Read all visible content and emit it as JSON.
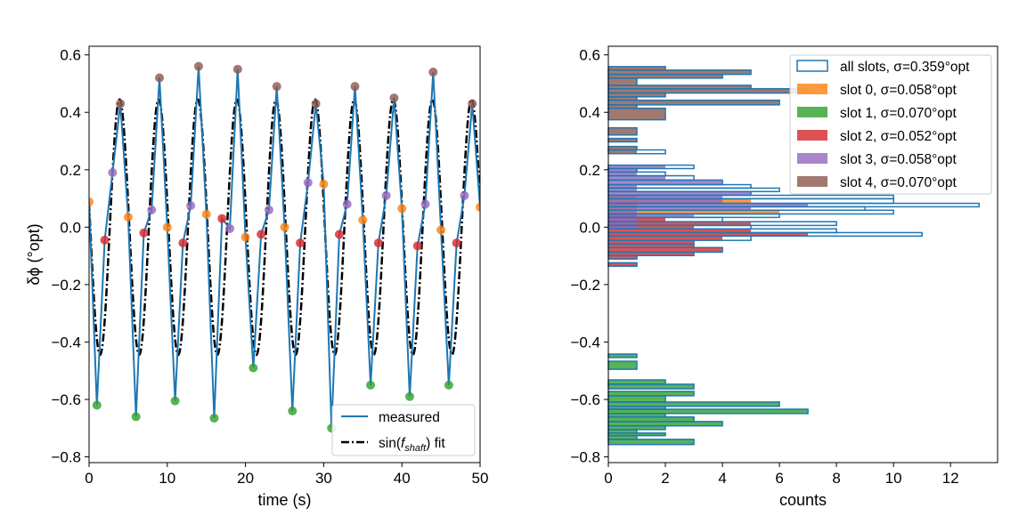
{
  "chart_data": [
    {
      "type": "line",
      "xlabel": "time (s)",
      "ylabel": "δϕ (°opt)",
      "xlim": [
        0,
        50
      ],
      "ylim": [
        -0.82,
        0.63
      ],
      "xticks": [
        "0",
        "10",
        "20",
        "30",
        "40",
        "50"
      ],
      "yticks": [
        "-0.8",
        "-0.6",
        "-0.4",
        "-0.2",
        "0.0",
        "0.2",
        "0.4",
        "0.6"
      ],
      "grid": false,
      "legend_placement": "lower-right",
      "legend": {
        "measured": "measured",
        "fit_prefix": "sin(",
        "fit_var": "f",
        "fit_sub": "shaft",
        "fit_suffix": ") fit"
      },
      "measured": {
        "color": "#1f77b4",
        "x": [
          0,
          1,
          2,
          3,
          4,
          5,
          6,
          7,
          8,
          9,
          10,
          11,
          12,
          13,
          14,
          15,
          16,
          17,
          18,
          19,
          20,
          21,
          22,
          23,
          24,
          25,
          26,
          27,
          28,
          29,
          30,
          31,
          32,
          33,
          34,
          35,
          36,
          37,
          38,
          39,
          40,
          41,
          42,
          43,
          44,
          45,
          46,
          47,
          48,
          49,
          50
        ],
        "y": [
          0.088,
          -0.62,
          -0.045,
          0.19,
          0.43,
          0.035,
          -0.66,
          -0.02,
          0.06,
          0.52,
          0.0,
          -0.605,
          -0.055,
          0.075,
          0.56,
          0.045,
          -0.665,
          0.03,
          -0.005,
          0.55,
          -0.035,
          -0.49,
          -0.025,
          0.06,
          0.49,
          0.0,
          -0.64,
          -0.055,
          0.155,
          0.43,
          0.15,
          -0.7,
          -0.025,
          0.08,
          0.49,
          0.025,
          -0.55,
          -0.055,
          0.11,
          0.45,
          0.065,
          -0.59,
          -0.065,
          0.08,
          0.54,
          -0.01,
          -0.55,
          -0.055,
          0.11,
          0.43,
          0.07
        ]
      },
      "fit": {
        "amplitude": 0.445,
        "period_s": 5,
        "peak_time_s": 3.9,
        "color": "#000000",
        "style": "dash-dot"
      },
      "slot_colors": [
        "#ff7f0e",
        "#2ca02c",
        "#d62728",
        "#9467bd",
        "#8c564b"
      ]
    },
    {
      "type": "bar",
      "orientation": "horizontal histogram",
      "xlabel": "counts",
      "xlim": [
        0,
        13.65
      ],
      "ylim": [
        -0.82,
        0.63
      ],
      "xticks": [
        "0",
        "2",
        "4",
        "6",
        "8",
        "10",
        "12"
      ],
      "yticks": [
        "-0.8",
        "-0.6",
        "-0.4",
        "-0.2",
        "0.0",
        "0.2",
        "0.4",
        "0.6"
      ],
      "grid": false,
      "legend_placement": "top-right",
      "legend": [
        "all slots, σ=0.359°opt",
        "slot 0, σ=0.058°opt",
        "slot 1, σ=0.070°opt",
        "slot 2, σ=0.052°opt",
        "slot 3, σ=0.058°opt",
        "slot 4, σ=0.070°opt"
      ],
      "all_color": "#1f77b4",
      "slot_colors": [
        "#ff7f0e",
        "#2ca02c",
        "#d62728",
        "#9467bd",
        "#8c564b"
      ],
      "rows": [
        {
          "lo": 0.547,
          "hi": 0.559,
          "all": 2,
          "slot": [
            0,
            0,
            0,
            0,
            2
          ]
        },
        {
          "lo": 0.532,
          "hi": 0.547,
          "all": 5,
          "slot": [
            0,
            0,
            0,
            0,
            5
          ]
        },
        {
          "lo": 0.519,
          "hi": 0.532,
          "all": 4,
          "slot": [
            0,
            0,
            0,
            0,
            4
          ]
        },
        {
          "lo": 0.494,
          "hi": 0.519,
          "all": 1,
          "slot": [
            0,
            0,
            0,
            0,
            1
          ]
        },
        {
          "lo": 0.482,
          "hi": 0.494,
          "all": 5,
          "slot": [
            0,
            0,
            0,
            0,
            5
          ]
        },
        {
          "lo": 0.467,
          "hi": 0.482,
          "all": 7,
          "slot": [
            0,
            0,
            0,
            0,
            7
          ]
        },
        {
          "lo": 0.454,
          "hi": 0.467,
          "all": 2,
          "slot": [
            0,
            0,
            0,
            0,
            2
          ]
        },
        {
          "lo": 0.442,
          "hi": 0.454,
          "all": 1,
          "slot": [
            0,
            0,
            0,
            0,
            1
          ]
        },
        {
          "lo": 0.426,
          "hi": 0.442,
          "all": 6,
          "slot": [
            0,
            0,
            0,
            0,
            6
          ]
        },
        {
          "lo": 0.414,
          "hi": 0.426,
          "all": 1,
          "slot": [
            0,
            0,
            0,
            0,
            1
          ]
        },
        {
          "lo": 0.374,
          "hi": 0.414,
          "all": 2,
          "slot": [
            0,
            0,
            0,
            0,
            2
          ]
        },
        {
          "lo": 0.321,
          "hi": 0.346,
          "all": 1,
          "slot": [
            0,
            0,
            0,
            0,
            1
          ]
        },
        {
          "lo": 0.297,
          "hi": 0.309,
          "all": 1,
          "slot": [
            0,
            0,
            0,
            0,
            1
          ]
        },
        {
          "lo": 0.269,
          "hi": 0.281,
          "all": 1,
          "slot": [
            0,
            0,
            0,
            0,
            1
          ]
        },
        {
          "lo": 0.256,
          "hi": 0.269,
          "all": 2,
          "slot": [
            0,
            0,
            0,
            0,
            1
          ]
        },
        {
          "lo": 0.204,
          "hi": 0.216,
          "all": 3,
          "slot": [
            0,
            0,
            0,
            2,
            0
          ]
        },
        {
          "lo": 0.192,
          "hi": 0.204,
          "all": 1,
          "slot": [
            0,
            0,
            0,
            1,
            0
          ]
        },
        {
          "lo": 0.179,
          "hi": 0.192,
          "all": 2,
          "slot": [
            0,
            0,
            0,
            1,
            0
          ]
        },
        {
          "lo": 0.164,
          "hi": 0.179,
          "all": 3,
          "slot": [
            0,
            0,
            0,
            2,
            0
          ]
        },
        {
          "lo": 0.148,
          "hi": 0.164,
          "all": 4,
          "slot": [
            0,
            0,
            0,
            4,
            0
          ]
        },
        {
          "lo": 0.136,
          "hi": 0.148,
          "all": 5,
          "slot": [
            0,
            0,
            0,
            1,
            0
          ]
        },
        {
          "lo": 0.124,
          "hi": 0.136,
          "all": 6,
          "slot": [
            0,
            0,
            0,
            1,
            0
          ]
        },
        {
          "lo": 0.111,
          "hi": 0.124,
          "all": 5,
          "slot": [
            0,
            0,
            0,
            5,
            0
          ]
        },
        {
          "lo": 0.099,
          "hi": 0.111,
          "all": 10,
          "slot": [
            1,
            0,
            0,
            4,
            0
          ]
        },
        {
          "lo": 0.083,
          "hi": 0.099,
          "all": 10,
          "slot": [
            5,
            0,
            0,
            4,
            0
          ]
        },
        {
          "lo": 0.071,
          "hi": 0.083,
          "all": 13,
          "slot": [
            1,
            0,
            0,
            7,
            0
          ]
        },
        {
          "lo": 0.059,
          "hi": 0.071,
          "all": 9,
          "slot": [
            1,
            0,
            0,
            5,
            0
          ]
        },
        {
          "lo": 0.046,
          "hi": 0.059,
          "all": 10,
          "slot": [
            6,
            0,
            0,
            1,
            0
          ]
        },
        {
          "lo": 0.034,
          "hi": 0.046,
          "all": 6,
          "slot": [
            0,
            0,
            1,
            3,
            0
          ]
        },
        {
          "lo": 0.019,
          "hi": 0.034,
          "all": 4,
          "slot": [
            0,
            0,
            2,
            1,
            0
          ]
        },
        {
          "lo": 0.006,
          "hi": 0.019,
          "all": 8,
          "slot": [
            0,
            0,
            5,
            1,
            0
          ]
        },
        {
          "lo": -0.006,
          "hi": 0.006,
          "all": 5,
          "slot": [
            0,
            0,
            3,
            1,
            0
          ]
        },
        {
          "lo": -0.019,
          "hi": -0.006,
          "all": 8,
          "slot": [
            0,
            0,
            5,
            0,
            0
          ]
        },
        {
          "lo": -0.031,
          "hi": -0.019,
          "all": 11,
          "slot": [
            0,
            0,
            7,
            0,
            0
          ]
        },
        {
          "lo": -0.046,
          "hi": -0.031,
          "all": 5,
          "slot": [
            0,
            0,
            4,
            0,
            0
          ]
        },
        {
          "lo": -0.059,
          "hi": -0.046,
          "all": 3,
          "slot": [
            0,
            0,
            3,
            0,
            0
          ]
        },
        {
          "lo": -0.071,
          "hi": -0.059,
          "all": 3,
          "slot": [
            0,
            0,
            3,
            0,
            0
          ]
        },
        {
          "lo": -0.087,
          "hi": -0.071,
          "all": 4,
          "slot": [
            0,
            0,
            4,
            0,
            0
          ]
        },
        {
          "lo": -0.099,
          "hi": -0.087,
          "all": 3,
          "slot": [
            0,
            0,
            3,
            0,
            0
          ]
        },
        {
          "lo": -0.111,
          "hi": -0.099,
          "all": 1,
          "slot": [
            0,
            0,
            1,
            0,
            0
          ]
        },
        {
          "lo": -0.136,
          "hi": -0.124,
          "all": 1,
          "slot": [
            0,
            0,
            1,
            0,
            0
          ]
        },
        {
          "lo": -0.454,
          "hi": -0.442,
          "all": 1,
          "slot": [
            0,
            1,
            0,
            0,
            0
          ]
        },
        {
          "lo": -0.495,
          "hi": -0.467,
          "all": 1,
          "slot": [
            0,
            1,
            0,
            0,
            0
          ]
        },
        {
          "lo": -0.547,
          "hi": -0.532,
          "all": 2,
          "slot": [
            0,
            2,
            0,
            0,
            0
          ]
        },
        {
          "lo": -0.563,
          "hi": -0.547,
          "all": 3,
          "slot": [
            0,
            3,
            0,
            0,
            0
          ]
        },
        {
          "lo": -0.587,
          "hi": -0.572,
          "all": 3,
          "slot": [
            0,
            3,
            0,
            0,
            0
          ]
        },
        {
          "lo": -0.609,
          "hi": -0.587,
          "all": 2,
          "slot": [
            0,
            2,
            0,
            0,
            0
          ]
        },
        {
          "lo": -0.624,
          "hi": -0.609,
          "all": 6,
          "slot": [
            0,
            6,
            0,
            0,
            0
          ]
        },
        {
          "lo": -0.634,
          "hi": -0.624,
          "all": 2,
          "slot": [
            0,
            2,
            0,
            0,
            0
          ]
        },
        {
          "lo": -0.649,
          "hi": -0.634,
          "all": 7,
          "slot": [
            0,
            7,
            0,
            0,
            0
          ]
        },
        {
          "lo": -0.661,
          "hi": -0.649,
          "all": 2,
          "slot": [
            0,
            2,
            0,
            0,
            0
          ]
        },
        {
          "lo": -0.677,
          "hi": -0.661,
          "all": 3,
          "slot": [
            0,
            3,
            0,
            0,
            0
          ]
        },
        {
          "lo": -0.692,
          "hi": -0.677,
          "all": 4,
          "slot": [
            0,
            4,
            0,
            0,
            0
          ]
        },
        {
          "lo": -0.705,
          "hi": -0.692,
          "all": 2,
          "slot": [
            0,
            2,
            0,
            0,
            0
          ]
        },
        {
          "lo": -0.717,
          "hi": -0.705,
          "all": 1,
          "slot": [
            0,
            1,
            0,
            0,
            0
          ]
        },
        {
          "lo": -0.726,
          "hi": -0.717,
          "all": 2,
          "slot": [
            0,
            2,
            0,
            0,
            0
          ]
        },
        {
          "lo": -0.739,
          "hi": -0.726,
          "all": 1,
          "slot": [
            0,
            1,
            0,
            0,
            0
          ]
        },
        {
          "lo": -0.757,
          "hi": -0.739,
          "all": 3,
          "slot": [
            0,
            3,
            0,
            0,
            0
          ]
        }
      ]
    }
  ]
}
